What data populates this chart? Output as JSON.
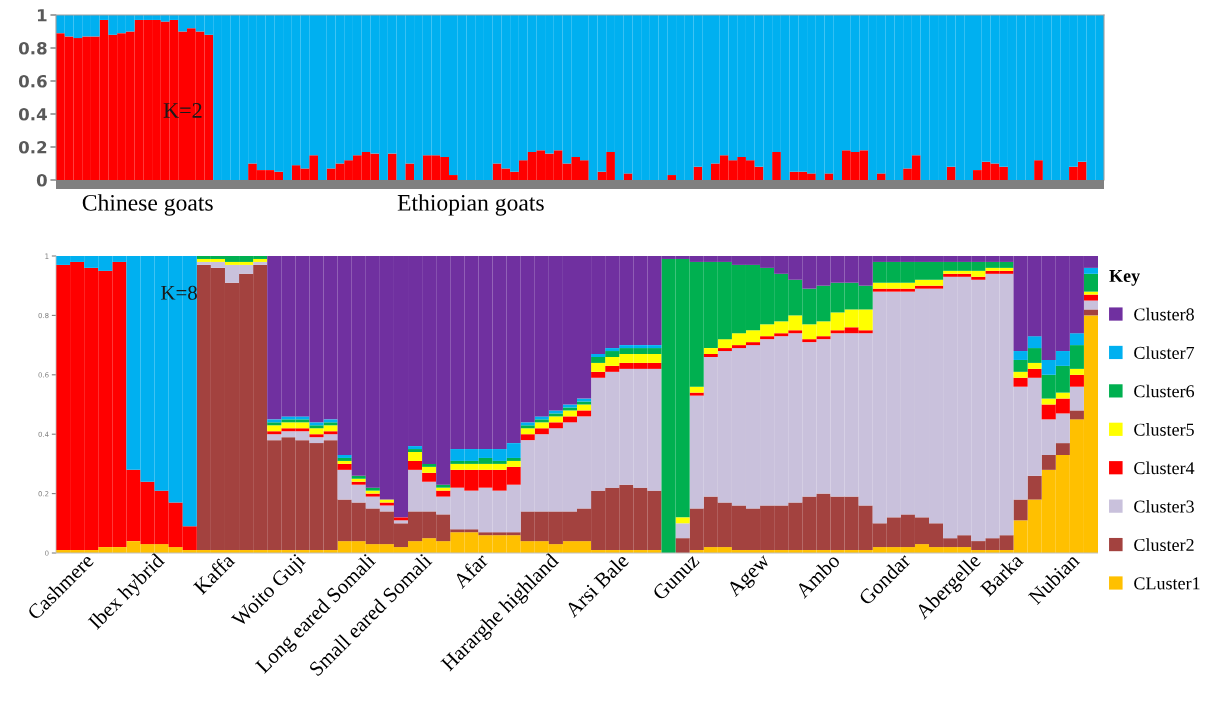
{
  "chart_data": [
    {
      "type": "bar",
      "stacked": true,
      "categories": [
        null,
        null,
        null,
        null,
        null,
        null,
        null,
        null,
        null,
        null,
        "Chinese goats",
        null,
        null,
        null,
        null,
        null,
        null,
        null,
        null,
        null,
        null,
        null,
        null,
        null,
        null,
        null,
        null,
        null,
        null,
        null,
        null,
        null,
        null,
        null,
        null,
        null,
        null,
        null,
        null,
        null,
        null,
        null,
        null,
        null,
        null,
        null,
        null,
        "Ethiopian goats",
        null,
        null,
        null,
        null,
        null,
        null,
        null,
        null,
        null,
        null,
        null,
        null,
        null,
        null,
        null,
        null,
        null,
        null,
        null,
        null,
        null,
        null,
        null,
        null,
        null,
        null,
        null,
        null,
        null,
        null,
        null,
        null,
        null,
        null,
        null,
        null,
        null,
        null,
        null,
        null,
        null,
        null,
        null,
        null,
        null,
        null,
        null,
        null,
        null,
        null,
        null,
        null,
        null,
        null,
        null,
        null,
        null,
        null,
        null,
        null,
        null,
        null,
        null,
        null,
        null,
        null,
        null,
        null,
        null,
        null,
        null,
        null
      ],
      "series": [
        {
          "color": "#ff0000",
          "values": [
            0.89,
            0.87,
            0.86,
            0.87,
            0.87,
            0.97,
            0.88,
            0.89,
            0.9,
            0.97,
            0.97,
            0.97,
            0.96,
            0.97,
            0.9,
            0.92,
            0.9,
            0.88,
            0,
            0,
            0,
            0,
            0.1,
            0.06,
            0.06,
            0.05,
            0,
            0.09,
            0.07,
            0.15,
            0,
            0.07,
            0.1,
            0.12,
            0.15,
            0.17,
            0.16,
            0,
            0.16,
            0,
            0.1,
            0,
            0.15,
            0.15,
            0.14,
            0.03,
            0,
            0,
            0,
            0,
            0.1,
            0.07,
            0.05,
            0.12,
            0.17,
            0.18,
            0.16,
            0.18,
            0.1,
            0.14,
            0.12,
            0,
            0.05,
            0.17,
            0,
            0.04,
            0,
            0,
            0,
            0,
            0.03,
            0,
            0,
            0.08,
            0,
            0.1,
            0.15,
            0.12,
            0.14,
            0.12,
            0.08,
            0,
            0.17,
            0,
            0.05,
            0.05,
            0.04,
            0,
            0.04,
            0,
            0.18,
            0.17,
            0.18,
            0,
            0.04,
            0,
            0,
            0.07,
            0.15,
            0,
            0,
            0,
            0.08,
            0,
            0,
            0.06,
            0.11,
            0.1,
            0.08,
            0,
            0,
            0,
            0.12,
            0,
            0,
            0,
            0.08,
            0.11,
            0,
            0
          ]
        },
        {
          "color": "#00b0f0",
          "values": [
            0.11,
            0.13,
            0.14,
            0.13,
            0.13,
            0.03,
            0.12,
            0.11,
            0.1,
            0.03,
            0.03,
            0.03,
            0.04,
            0.03,
            0.1,
            0.08,
            0.1,
            0.12,
            1,
            1,
            1,
            1,
            0.9,
            0.94,
            0.94,
            0.95,
            1,
            0.91,
            0.93,
            0.85,
            1,
            0.93,
            0.9,
            0.88,
            0.85,
            0.83,
            0.84,
            1,
            0.84,
            1,
            0.9,
            1,
            0.85,
            0.85,
            0.86,
            0.97,
            1,
            1,
            1,
            1,
            0.9,
            0.93,
            0.95,
            0.88,
            0.83,
            0.82,
            0.84,
            0.82,
            0.9,
            0.86,
            0.88,
            1,
            0.95,
            0.83,
            1,
            0.96,
            1,
            1,
            1,
            1,
            0.97,
            1,
            1,
            0.92,
            1,
            0.9,
            0.85,
            0.88,
            0.86,
            0.88,
            0.92,
            1,
            0.83,
            1,
            0.95,
            0.95,
            0.96,
            1,
            0.96,
            1,
            0.82,
            0.83,
            0.82,
            1,
            0.96,
            1,
            1,
            0.93,
            0.85,
            1,
            1,
            1,
            0.92,
            1,
            1,
            0.94,
            0.89,
            0.9,
            0.92,
            1,
            1,
            1,
            0.88,
            1,
            1,
            1,
            0.92,
            0.89,
            1,
            1
          ]
        }
      ],
      "ylim": [
        0,
        1
      ],
      "yticks": [
        0,
        0.2,
        0.4,
        0.6,
        0.8,
        1
      ],
      "annotations": [
        "K=2"
      ]
    },
    {
      "type": "bar",
      "stacked": true,
      "categories": [
        null,
        null,
        "Cashmere",
        null,
        null,
        null,
        null,
        "Ibex hybrid",
        null,
        null,
        null,
        null,
        "Kaffa",
        null,
        null,
        null,
        null,
        "Woito Guji",
        null,
        null,
        null,
        null,
        "Long eared Somali",
        null,
        null,
        null,
        "Small eared Somali",
        null,
        null,
        null,
        "Afar",
        null,
        null,
        null,
        null,
        "Hararghe highland",
        null,
        null,
        null,
        null,
        "Arsi Bale",
        null,
        null,
        null,
        null,
        "Gunuz",
        null,
        null,
        null,
        null,
        "Agew",
        null,
        null,
        null,
        null,
        "Ambo",
        null,
        null,
        null,
        null,
        "Gondar",
        null,
        null,
        null,
        null,
        "Abergelle",
        null,
        null,
        "Barka",
        null,
        null,
        null,
        "Nubian",
        null
      ],
      "series": [
        {
          "name": "CLuster1",
          "color": "#ffc000",
          "values": [
            0.01,
            0.01,
            0.01,
            0.02,
            0.02,
            0.04,
            0.03,
            0.03,
            0.02,
            0.01,
            0.01,
            0.01,
            0.01,
            0.01,
            0.01,
            0.01,
            0.01,
            0.01,
            0.01,
            0.01,
            0.04,
            0.04,
            0.03,
            0.03,
            0.02,
            0.04,
            0.05,
            0.04,
            0.07,
            0.07,
            0.06,
            0.06,
            0.06,
            0.04,
            0.04,
            0.03,
            0.04,
            0.04,
            0.01,
            0.01,
            0.01,
            0.01,
            0.01,
            0,
            0,
            0.01,
            0.02,
            0.02,
            0.01,
            0.01,
            0.01,
            0.01,
            0.01,
            0.01,
            0.01,
            0.01,
            0.01,
            0.01,
            0.02,
            0.02,
            0.02,
            0.03,
            0.02,
            0.02,
            0.02,
            0.01,
            0.01,
            0.01,
            0.11,
            0.18,
            0.28,
            0.33,
            0.45,
            0.8
          ]
        },
        {
          "name": "Cluster2",
          "color": "#a3423f",
          "values": [
            0,
            0,
            0,
            0,
            0,
            0,
            0,
            0,
            0,
            0,
            0.96,
            0.95,
            0.9,
            0.93,
            0.96,
            0.37,
            0.38,
            0.37,
            0.36,
            0.37,
            0.14,
            0.13,
            0.12,
            0.11,
            0.08,
            0.1,
            0.09,
            0.09,
            0.01,
            0.01,
            0.01,
            0.01,
            0.01,
            0.1,
            0.1,
            0.11,
            0.1,
            0.11,
            0.2,
            0.21,
            0.22,
            0.21,
            0.2,
            0,
            0.05,
            0.14,
            0.17,
            0.15,
            0.15,
            0.14,
            0.15,
            0.15,
            0.16,
            0.18,
            0.19,
            0.18,
            0.18,
            0.15,
            0.08,
            0.1,
            0.11,
            0.09,
            0.08,
            0.03,
            0.04,
            0.03,
            0.04,
            0.05,
            0.07,
            0.08,
            0.05,
            0.04,
            0.03,
            0.02
          ]
        },
        {
          "name": "Cluster3",
          "color": "#c9c1dc",
          "values": [
            0,
            0,
            0,
            0,
            0,
            0,
            0,
            0,
            0,
            0,
            0.01,
            0.02,
            0.06,
            0.03,
            0.01,
            0.02,
            0.02,
            0.03,
            0.02,
            0.02,
            0.1,
            0.06,
            0.04,
            0.02,
            0.01,
            0.14,
            0.1,
            0.06,
            0.14,
            0.13,
            0.15,
            0.14,
            0.16,
            0.24,
            0.26,
            0.28,
            0.3,
            0.31,
            0.38,
            0.39,
            0.39,
            0.4,
            0.41,
            0,
            0.05,
            0.38,
            0.47,
            0.51,
            0.53,
            0.55,
            0.56,
            0.57,
            0.57,
            0.52,
            0.52,
            0.55,
            0.55,
            0.58,
            0.78,
            0.76,
            0.75,
            0.77,
            0.79,
            0.88,
            0.87,
            0.88,
            0.89,
            0.88,
            0.38,
            0.33,
            0.12,
            0.1,
            0.08,
            0.03
          ]
        },
        {
          "name": "Cluster4",
          "color": "#ff0000",
          "values": [
            0.96,
            0.97,
            0.95,
            0.93,
            0.96,
            0.24,
            0.21,
            0.18,
            0.15,
            0.08,
            0,
            0,
            0,
            0,
            0,
            0.01,
            0.01,
            0.01,
            0.01,
            0.01,
            0.02,
            0.01,
            0.01,
            0.01,
            0.01,
            0.03,
            0.03,
            0.02,
            0.06,
            0.07,
            0.06,
            0.07,
            0.06,
            0.02,
            0.02,
            0.02,
            0.02,
            0.02,
            0.02,
            0.02,
            0.02,
            0.02,
            0.02,
            0,
            0,
            0.01,
            0.01,
            0.01,
            0.01,
            0.01,
            0.01,
            0.01,
            0.01,
            0.01,
            0.01,
            0.01,
            0.02,
            0.01,
            0.01,
            0.01,
            0.01,
            0.01,
            0.01,
            0.01,
            0.01,
            0.01,
            0.01,
            0.01,
            0.03,
            0.03,
            0.05,
            0.05,
            0.04,
            0.02
          ]
        },
        {
          "name": "Cluster5",
          "color": "#ffff00",
          "values": [
            0,
            0,
            0,
            0,
            0,
            0,
            0,
            0,
            0,
            0,
            0.01,
            0.01,
            0.01,
            0.01,
            0.01,
            0.02,
            0.02,
            0.02,
            0.02,
            0.02,
            0.01,
            0.01,
            0.01,
            0.01,
            0,
            0.03,
            0.02,
            0.01,
            0.02,
            0.02,
            0.02,
            0.02,
            0.02,
            0.02,
            0.02,
            0.02,
            0.02,
            0.02,
            0.03,
            0.03,
            0.03,
            0.03,
            0.03,
            0,
            0.02,
            0.02,
            0.02,
            0.03,
            0.04,
            0.04,
            0.04,
            0.04,
            0.05,
            0.05,
            0.05,
            0.06,
            0.06,
            0.07,
            0.02,
            0.02,
            0.02,
            0.02,
            0.02,
            0.01,
            0.01,
            0.02,
            0.01,
            0.01,
            0.02,
            0.02,
            0.02,
            0.02,
            0.02,
            0.01
          ]
        },
        {
          "name": "Cluster6",
          "color": "#00b050",
          "values": [
            0,
            0,
            0,
            0,
            0,
            0,
            0,
            0,
            0,
            0,
            0.01,
            0.01,
            0.02,
            0.02,
            0.01,
            0.01,
            0.01,
            0.01,
            0.01,
            0.01,
            0.01,
            0.01,
            0.01,
            0,
            0,
            0.01,
            0.01,
            0.01,
            0.01,
            0.01,
            0.02,
            0.01,
            0.01,
            0.01,
            0.01,
            0.01,
            0.01,
            0.01,
            0.02,
            0.02,
            0.02,
            0.02,
            0.02,
            0.99,
            0.87,
            0.42,
            0.29,
            0.26,
            0.23,
            0.22,
            0.19,
            0.16,
            0.12,
            0.12,
            0.12,
            0.1,
            0.09,
            0.08,
            0.07,
            0.07,
            0.07,
            0.06,
            0.06,
            0.03,
            0.03,
            0.03,
            0.02,
            0.02,
            0.04,
            0.05,
            0.08,
            0.09,
            0.08,
            0.06
          ]
        },
        {
          "name": "Cluster7",
          "color": "#00b0f0",
          "values": [
            0.03,
            0.02,
            0.04,
            0.05,
            0.02,
            0.72,
            0.76,
            0.79,
            0.83,
            0.91,
            0,
            0,
            0,
            0,
            0,
            0.01,
            0.01,
            0.01,
            0.01,
            0.01,
            0.01,
            0,
            0,
            0,
            0,
            0.01,
            0,
            0,
            0.04,
            0.04,
            0.03,
            0.04,
            0.05,
            0.01,
            0.01,
            0.01,
            0.01,
            0.01,
            0.01,
            0.01,
            0.01,
            0.01,
            0.01,
            0,
            0,
            0,
            0,
            0,
            0,
            0,
            0,
            0,
            0,
            0,
            0,
            0,
            0,
            0,
            0,
            0,
            0,
            0,
            0,
            0,
            0,
            0,
            0,
            0,
            0.03,
            0.04,
            0.05,
            0.05,
            0.04,
            0.02
          ]
        },
        {
          "name": "Cluster8",
          "color": "#7030a0",
          "values": [
            0,
            0,
            0,
            0,
            0,
            0,
            0,
            0,
            0,
            0,
            0,
            0,
            0,
            0,
            0,
            0.55,
            0.54,
            0.54,
            0.56,
            0.55,
            0.67,
            0.74,
            0.78,
            0.82,
            0.88,
            0.64,
            0.7,
            0.77,
            0.65,
            0.65,
            0.65,
            0.65,
            0.63,
            0.56,
            0.54,
            0.52,
            0.5,
            0.48,
            0.33,
            0.31,
            0.3,
            0.3,
            0.3,
            0.01,
            0.01,
            0.02,
            0.02,
            0.02,
            0.03,
            0.03,
            0.04,
            0.06,
            0.08,
            0.11,
            0.1,
            0.09,
            0.09,
            0.1,
            0.02,
            0.02,
            0.02,
            0.02,
            0.02,
            0.02,
            0.02,
            0.02,
            0.02,
            0.02,
            0.32,
            0.27,
            0.35,
            0.32,
            0.26,
            0.04
          ]
        }
      ],
      "ylim": [
        0,
        1
      ],
      "yticks": [
        0,
        0.2,
        0.4,
        0.6,
        0.8,
        1
      ],
      "legend": "right",
      "legend_title": "Key",
      "annotations": [
        "K=8"
      ]
    }
  ]
}
